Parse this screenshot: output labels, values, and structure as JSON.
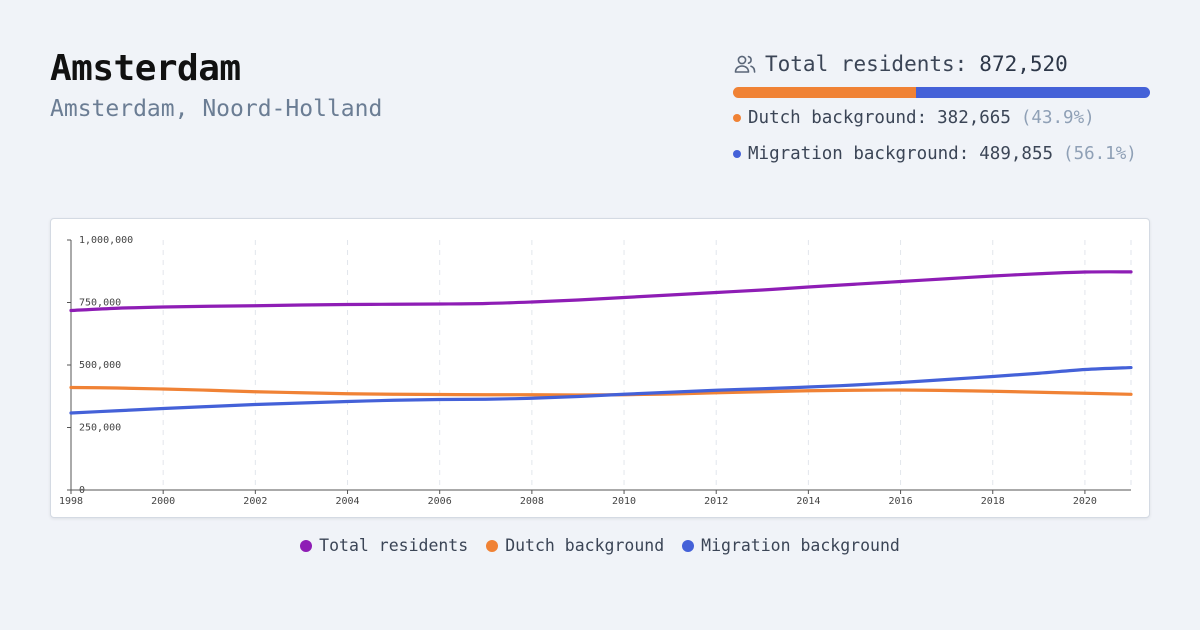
{
  "header": {
    "title": "Amsterdam",
    "subtitle": "Amsterdam, Noord-Holland"
  },
  "stats": {
    "total_label": "Total residents:",
    "total_value": "872,520",
    "dutch_label": "Dutch background:",
    "dutch_value": "382,665",
    "dutch_pct": "(43.9%)",
    "dutch_share": 0.439,
    "migration_label": "Migration background:",
    "migration_value": "489,855",
    "migration_pct": "(56.1%)",
    "migration_share": 0.561,
    "icon": "users-icon"
  },
  "colors": {
    "total": "#8e1db5",
    "dutch": "#f08235",
    "migration": "#4461d8"
  },
  "chart_data": {
    "type": "line",
    "title": "",
    "xlabel": "",
    "ylabel": "",
    "xlim": [
      1998,
      2021
    ],
    "ylim": [
      0,
      1000000
    ],
    "x_ticks": [
      "1998",
      "2000",
      "2002",
      "2004",
      "2006",
      "2008",
      "2010",
      "2012",
      "2014",
      "2016",
      "2018",
      "2020"
    ],
    "y_ticks": [
      "0",
      "250,000",
      "500,000",
      "750,000",
      "1,000,000"
    ],
    "y_tick_values": [
      0,
      250000,
      500000,
      750000,
      1000000
    ],
    "x_tick_values": [
      1998,
      2000,
      2002,
      2004,
      2006,
      2008,
      2010,
      2012,
      2014,
      2016,
      2018,
      2020
    ],
    "grid": "vertical dashed",
    "legend_position": "bottom",
    "x": [
      1998,
      1999,
      2000,
      2001,
      2002,
      2003,
      2004,
      2005,
      2006,
      2007,
      2008,
      2009,
      2010,
      2011,
      2012,
      2013,
      2014,
      2015,
      2016,
      2017,
      2018,
      2019,
      2020,
      2021
    ],
    "series": [
      {
        "name": "Total residents",
        "color": "#8e1db5",
        "values": [
          718000,
          727000,
          732000,
          735000,
          737000,
          740000,
          742000,
          743000,
          744000,
          746000,
          752000,
          760000,
          770000,
          780000,
          790000,
          800000,
          812000,
          823000,
          834000,
          845000,
          856000,
          865000,
          872000,
          872520
        ]
      },
      {
        "name": "Dutch background",
        "color": "#f08235",
        "values": [
          410000,
          408000,
          404000,
          399000,
          393000,
          389000,
          385000,
          383000,
          382000,
          381000,
          381000,
          380000,
          381000,
          384000,
          389000,
          393000,
          397000,
          399000,
          400000,
          398000,
          395000,
          391000,
          387000,
          382665
        ]
      },
      {
        "name": "Migration background",
        "color": "#4461d8",
        "values": [
          308000,
          317000,
          326000,
          334000,
          342000,
          348000,
          354000,
          359000,
          362000,
          363000,
          367000,
          374000,
          383000,
          391000,
          399000,
          405000,
          412000,
          420000,
          430000,
          442000,
          454000,
          467000,
          482000,
          489855
        ]
      }
    ]
  }
}
